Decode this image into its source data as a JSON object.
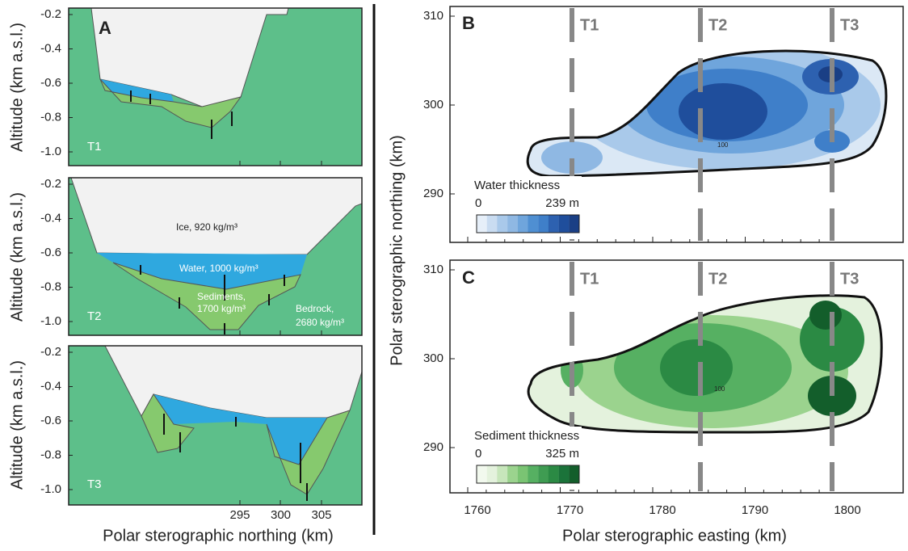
{
  "panel_a": {
    "label": "A",
    "y_axis_label": "Altitude (km a.s.l.)",
    "y_ticks": [
      "-0.2",
      "-0.4",
      "-0.6",
      "-0.8",
      "-1.0"
    ],
    "x_ticks": [
      "295",
      "300",
      "305"
    ],
    "x_axis_label": "Polar sterographic northing (km)",
    "sections": [
      {
        "name": "T1"
      },
      {
        "name": "T2",
        "ice": "Ice, 920 kg/m³",
        "water": "Water, 1000 kg/m³",
        "sediments": [
          "Sediments,",
          "1700 kg/m³"
        ],
        "bedrock": [
          "Bedrock,",
          "2680 kg/m³"
        ]
      },
      {
        "name": "T3"
      }
    ]
  },
  "panel_b": {
    "label": "B",
    "transects": [
      "T1",
      "T2",
      "T3"
    ],
    "y_ticks": [
      "310",
      "300",
      "290"
    ],
    "colorbar": {
      "title": "Water thickness",
      "min": "0",
      "max": "239 m"
    },
    "contour_label": "100"
  },
  "panel_c": {
    "label": "C",
    "transects": [
      "T1",
      "T2",
      "T3"
    ],
    "y_ticks": [
      "310",
      "300",
      "290"
    ],
    "colorbar": {
      "title": "Sediment thickness",
      "min": "0",
      "max": "325 m"
    },
    "contour_label": "100"
  },
  "y_axis_label": "Polar sterographic northing (km)",
  "x_ticks": [
    "1760",
    "1770",
    "1780",
    "1790",
    "1800"
  ],
  "x_axis_label": "Polar sterographic easting (km)"
}
